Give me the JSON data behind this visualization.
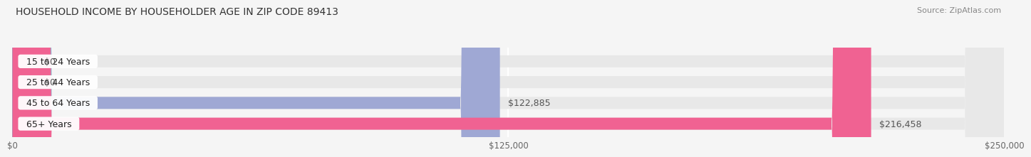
{
  "title": "HOUSEHOLD INCOME BY HOUSEHOLDER AGE IN ZIP CODE 89413",
  "source": "Source: ZipAtlas.com",
  "categories": [
    "15 to 24 Years",
    "25 to 44 Years",
    "45 to 64 Years",
    "65+ Years"
  ],
  "values": [
    0,
    0,
    122885,
    216458
  ],
  "bar_colors": [
    "#c9a8d4",
    "#5ecfca",
    "#9fa8d4",
    "#f06292"
  ],
  "bar_labels": [
    "$0",
    "$0",
    "$122,885",
    "$216,458"
  ],
  "xlim": [
    0,
    250000
  ],
  "xticklabels": [
    "$0",
    "$125,000",
    "$250,000"
  ],
  "bg_color": "#f5f5f5",
  "bar_bg_color": "#e8e8e8",
  "title_fontsize": 10,
  "label_fontsize": 9,
  "tick_fontsize": 8.5,
  "source_fontsize": 8,
  "bar_height": 0.58,
  "label_color": "#555555",
  "title_color": "#333333"
}
